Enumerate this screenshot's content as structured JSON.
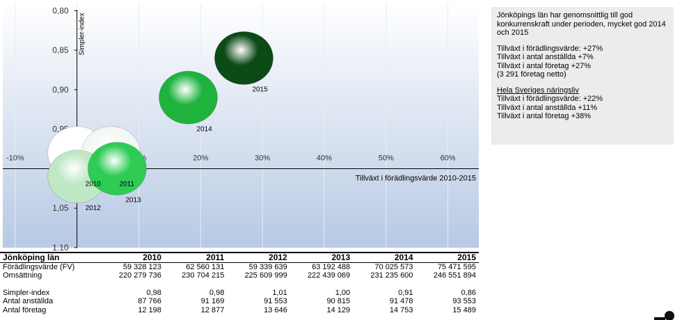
{
  "chart_data": {
    "type": "bubble",
    "ylabel": "Simpler-index",
    "xlabel": "Tillväxt i förädlingsvärde 2010-2015",
    "xlim": [
      -12,
      65
    ],
    "ylim": [
      0.79,
      1.1
    ],
    "y_inverted": true,
    "grid": true,
    "xticks": [
      {
        "value": -10,
        "label": "-10%"
      },
      {
        "value": 0,
        "label": "0%"
      },
      {
        "value": 10,
        "label": "10%"
      },
      {
        "value": 20,
        "label": "20%"
      },
      {
        "value": 30,
        "label": "30%"
      },
      {
        "value": 40,
        "label": "40%"
      },
      {
        "value": 50,
        "label": "50%"
      },
      {
        "value": 60,
        "label": "60%"
      }
    ],
    "yticks": [
      {
        "value": 0.8,
        "label": "0,80"
      },
      {
        "value": 0.85,
        "label": "0,85"
      },
      {
        "value": 0.9,
        "label": "0,90"
      },
      {
        "value": 0.95,
        "label": "0,95"
      },
      {
        "value": 1.0,
        "label": "1,00"
      },
      {
        "value": 1.05,
        "label": "1,05"
      },
      {
        "value": 1.1,
        "label": "1,10"
      }
    ],
    "series": [
      {
        "name": "2010",
        "color": "#ffffff",
        "x": [
          0
        ],
        "values": [
          0.98
        ]
      },
      {
        "name": "2011",
        "color": "#f4f8f4",
        "x": [
          5.5
        ],
        "values": [
          0.98
        ]
      },
      {
        "name": "2012",
        "color": "#bfe8c4",
        "x": [
          0
        ],
        "values": [
          1.01
        ]
      },
      {
        "name": "2013",
        "color": "#2ecc55",
        "x": [
          6.5
        ],
        "values": [
          1.0
        ]
      },
      {
        "name": "2014",
        "color": "#1fb33e",
        "x": [
          18
        ],
        "values": [
          0.91
        ]
      },
      {
        "name": "2015",
        "color": "#0c4a16",
        "x": [
          27
        ],
        "values": [
          0.86
        ]
      }
    ]
  },
  "table": {
    "header": [
      "Jönköping län",
      "2010",
      "2011",
      "2012",
      "2013",
      "2014",
      "2015"
    ],
    "sections": [
      [
        [
          "Förädlingsvärde (FV)",
          "59 328 123",
          "62 560 131",
          "59 339 639",
          "63 192 488",
          "70 025 573",
          "75 471 595"
        ],
        [
          "Omsättning",
          "220 279 736",
          "230 704 215",
          "225 609 999",
          "222 439 069",
          "231 235 600",
          "246 551 894"
        ]
      ],
      [
        [
          "Simpler-index",
          "0,98",
          "0,98",
          "1,01",
          "1,00",
          "0,91",
          "0,86"
        ],
        [
          "Antal anställda",
          "87 766",
          "91 169",
          "91 553",
          "90 815",
          "91 478",
          "93 553"
        ],
        [
          "Antal företag",
          "12 198",
          "12 877",
          "13 646",
          "14 129",
          "14 753",
          "15 489"
        ]
      ]
    ]
  },
  "notes": {
    "intro": "Jönköpings län har genomsnittlig till god konkurrenskraft under perioden, mycket god 2014 och 2015",
    "county_lines": [
      "Tillväxt i förädlingsvärde: +27%",
      "Tillväxt i antal anställda +7%",
      "Tillväxt i antal företag +27%",
      "(3 291 företag netto)"
    ],
    "sweden_heading": "Hela Sveriges näringsliv",
    "sweden_lines": [
      "Tillväxt i förädlingsvärde: +22%",
      "Tillväxt i antal anställda +11%",
      "Tillväxt i antal företag +38%"
    ]
  }
}
